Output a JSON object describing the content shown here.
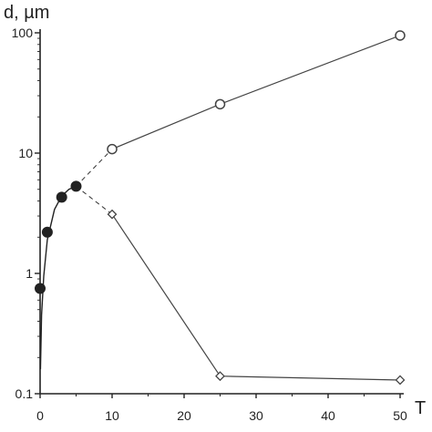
{
  "chart_data": {
    "type": "scatter",
    "title": "",
    "ylabel": "d, µm",
    "xlabel": "T",
    "y_scale": "log",
    "xlim": [
      0,
      50
    ],
    "ylim": [
      0.1,
      100
    ],
    "x_ticks": [
      0,
      10,
      20,
      30,
      40,
      50
    ],
    "x_tick_labels": [
      "0",
      "10",
      "20",
      "30",
      "40",
      "50"
    ],
    "y_ticks": [
      0.1,
      1,
      10,
      100
    ],
    "y_tick_labels": [
      "0.1",
      "1",
      "10",
      "100"
    ],
    "grid": false,
    "series": [
      {
        "marker": "filled-circle",
        "color": "#222222",
        "x": [
          0,
          1,
          3,
          5
        ],
        "y": [
          0.75,
          2.2,
          4.3,
          5.3
        ]
      },
      {
        "marker": "open-circle",
        "color": "#444444",
        "x": [
          10,
          25,
          50
        ],
        "y": [
          10.8,
          25.5,
          95
        ]
      },
      {
        "marker": "open-diamond",
        "color": "#444444",
        "x": [
          10,
          25,
          50
        ],
        "y": [
          3.1,
          0.14,
          0.13
        ]
      }
    ],
    "fit_curve": {
      "x": [
        0.05,
        0.2,
        0.5,
        1,
        2,
        3,
        4,
        5
      ],
      "y": [
        0.16,
        0.45,
        0.95,
        1.9,
        3.4,
        4.4,
        5.0,
        5.3
      ]
    },
    "dashed_connectors": [
      {
        "x": [
          5,
          10
        ],
        "y": [
          5.3,
          10.8
        ]
      },
      {
        "x": [
          5,
          10
        ],
        "y": [
          5.3,
          3.1
        ]
      }
    ]
  }
}
